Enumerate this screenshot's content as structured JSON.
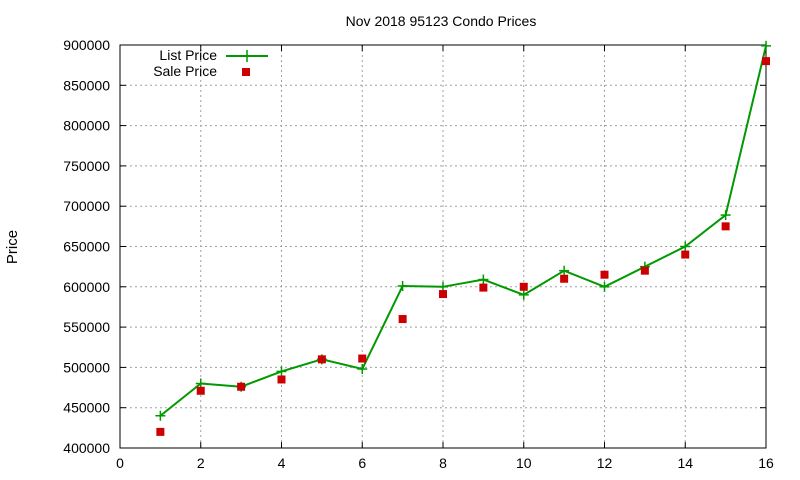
{
  "chart_data": {
    "type": "line",
    "title": "Nov 2018 95123 Condo Prices",
    "xlabel": "",
    "ylabel": "Price",
    "xlim": [
      0,
      16
    ],
    "ylim": [
      400000,
      900000
    ],
    "xticks": [
      0,
      2,
      4,
      6,
      8,
      10,
      12,
      14,
      16
    ],
    "yticks": [
      400000,
      450000,
      500000,
      550000,
      600000,
      650000,
      700000,
      750000,
      800000,
      850000,
      900000
    ],
    "grid": true,
    "legend_position": "top-left",
    "series": [
      {
        "name": "List Price",
        "style": "line-plus",
        "color": "#009900",
        "x": [
          1,
          2,
          3,
          4,
          5,
          6,
          7,
          8,
          9,
          10,
          11,
          12,
          13,
          14,
          15,
          16
        ],
        "values": [
          440000,
          480000,
          476000,
          495000,
          510000,
          498000,
          601000,
          600000,
          609000,
          590000,
          620000,
          600000,
          625000,
          650000,
          689000,
          899000
        ]
      },
      {
        "name": "Sale Price",
        "style": "square",
        "color": "#cc0000",
        "x": [
          1,
          2,
          3,
          4,
          5,
          6,
          7,
          8,
          9,
          10,
          11,
          12,
          13,
          14,
          15,
          16
        ],
        "values": [
          420000,
          471000,
          476000,
          485000,
          510000,
          511000,
          560000,
          591000,
          599000,
          600000,
          610000,
          615000,
          620000,
          640000,
          675000,
          880000
        ]
      }
    ]
  }
}
